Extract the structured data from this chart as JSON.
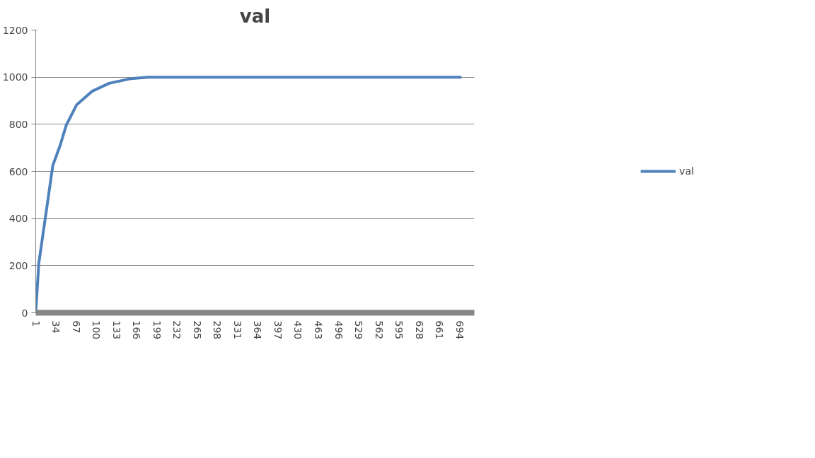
{
  "chart_data": {
    "type": "line",
    "title": "val",
    "x": [
      1,
      6,
      17,
      29,
      41,
      51,
      68,
      93,
      121,
      157,
      185,
      250,
      350,
      450,
      550,
      650,
      697
    ],
    "series": [
      {
        "name": "val",
        "color": "#4f81bd",
        "values": [
          0,
          209,
          409,
          626,
          711,
          797,
          883,
          940,
          974,
          994,
          1000,
          1000,
          1000,
          1000,
          1000,
          1000,
          1000
        ]
      }
    ],
    "xlim": [
      1,
      718
    ],
    "xticks": [
      1,
      34,
      67,
      100,
      133,
      166,
      199,
      232,
      265,
      298,
      331,
      364,
      397,
      430,
      463,
      496,
      529,
      562,
      595,
      628,
      661,
      694
    ],
    "ylim": [
      0,
      1200
    ],
    "yticks": [
      0,
      200,
      400,
      600,
      800,
      1000,
      1200
    ],
    "grid": "y",
    "legend": "right",
    "marker": "none",
    "line_style": "solid"
  }
}
